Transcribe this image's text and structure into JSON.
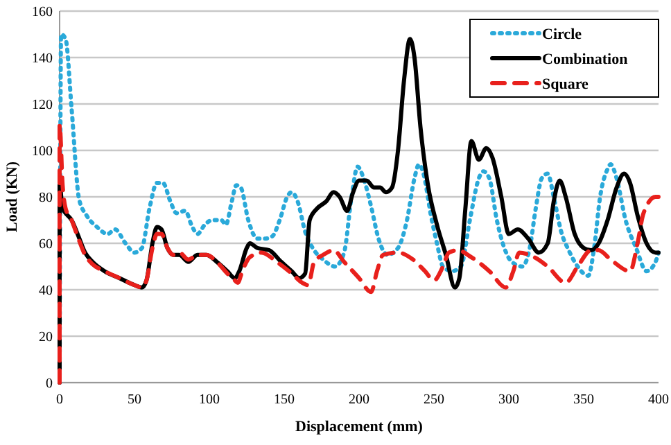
{
  "chart_data": {
    "type": "line",
    "xlabel": "Displacement (mm)",
    "ylabel": "Load (KN)",
    "xlim": [
      0,
      400
    ],
    "xticks": [
      0,
      50,
      100,
      150,
      200,
      250,
      300,
      350,
      400
    ],
    "ylim": [
      0,
      160
    ],
    "yticks": [
      0,
      20,
      40,
      60,
      80,
      100,
      120,
      140,
      160
    ],
    "grid": "y",
    "legend": "top right",
    "series": [
      {
        "name": "Circle",
        "color": "#2aa9d9",
        "line_style": "dotted",
        "x": [
          0,
          1,
          4,
          8,
          13,
          18,
          25,
          32,
          37,
          44,
          50,
          55,
          60,
          65,
          69,
          74,
          78,
          84,
          88,
          92,
          97,
          102,
          108,
          111,
          115,
          118,
          121,
          126,
          132,
          137,
          142,
          147,
          152,
          155,
          159,
          164,
          170,
          176,
          184,
          190,
          195,
          199,
          203,
          208,
          213,
          219,
          226,
          232,
          237,
          240,
          243,
          248,
          252,
          256,
          262,
          268,
          274,
          280,
          283,
          287,
          292,
          297,
          302,
          309,
          314,
          318,
          322,
          326,
          330,
          335,
          340,
          346,
          353,
          357,
          361,
          366,
          368,
          372,
          378,
          385,
          392,
          398,
          400
        ],
        "values": [
          0,
          150,
          148,
          118,
          79,
          72,
          67,
          64,
          66,
          60,
          56,
          58,
          75,
          86,
          86,
          78,
          73,
          74,
          68,
          64,
          68,
          70,
          70,
          68,
          78,
          85,
          84,
          70,
          62,
          62,
          63,
          70,
          80,
          82,
          78,
          65,
          57,
          53,
          50,
          56,
          80,
          93,
          88,
          76,
          62,
          55,
          58,
          70,
          88,
          94,
          90,
          72,
          60,
          50,
          48,
          50,
          70,
          88,
          91,
          88,
          70,
          58,
          52,
          50,
          58,
          75,
          88,
          90,
          80,
          65,
          57,
          50,
          46,
          58,
          80,
          92,
          94,
          88,
          70,
          58,
          48,
          52,
          56
        ]
      },
      {
        "name": "Combination",
        "color": "#000000",
        "line_style": "solid",
        "x": [
          0,
          0,
          2,
          4,
          8,
          12,
          17,
          22,
          30,
          40,
          50,
          55,
          58,
          62,
          65,
          68,
          72,
          76,
          80,
          86,
          92,
          98,
          105,
          112,
          117,
          120,
          125,
          127,
          132,
          140,
          148,
          155,
          160,
          164,
          167,
          172,
          178,
          183,
          187,
          192,
          196,
          200,
          205,
          210,
          214,
          218,
          222,
          226,
          230,
          234,
          237,
          241,
          246,
          252,
          258,
          264,
          267,
          271,
          275,
          280,
          285,
          289,
          295,
          300,
          306,
          313,
          320,
          326,
          330,
          334,
          338,
          344,
          350,
          355,
          360,
          366,
          372,
          377,
          381,
          386,
          392,
          398,
          400
        ],
        "values": [
          0,
          85,
          75,
          73,
          70,
          64,
          56,
          52,
          48,
          45,
          42,
          41,
          44,
          60,
          67,
          66,
          58,
          55,
          55,
          52,
          55,
          55,
          52,
          48,
          45,
          48,
          58,
          60,
          58,
          57,
          52,
          48,
          45,
          47,
          70,
          75,
          78,
          82,
          80,
          74,
          82,
          87,
          87,
          84,
          84,
          82,
          84,
          100,
          130,
          148,
          140,
          110,
          85,
          68,
          55,
          41,
          45,
          75,
          104,
          96,
          101,
          97,
          80,
          64,
          66,
          62,
          56,
          60,
          78,
          87,
          80,
          64,
          58,
          57,
          60,
          70,
          84,
          90,
          86,
          72,
          60,
          56,
          56
        ]
      },
      {
        "name": "Square",
        "color": "#e8201c",
        "line_style": "dashed",
        "x": [
          0,
          0,
          2,
          4,
          8,
          12,
          17,
          22,
          30,
          40,
          50,
          55,
          58,
          62,
          65,
          68,
          72,
          76,
          80,
          86,
          92,
          98,
          105,
          112,
          117,
          119,
          122,
          127,
          135,
          145,
          155,
          162,
          166,
          170,
          176,
          183,
          190,
          200,
          208,
          212,
          216,
          226,
          236,
          244,
          250,
          256,
          260,
          266,
          275,
          287,
          298,
          303,
          307,
          317,
          326,
          338,
          346,
          355,
          360,
          368,
          381,
          386,
          390,
          398,
          400
        ],
        "values": [
          0,
          111,
          85,
          75,
          70,
          63,
          55,
          51,
          48,
          45,
          42,
          41,
          44,
          58,
          64,
          64,
          58,
          55,
          56,
          53,
          55,
          55,
          52,
          47,
          44,
          43,
          48,
          54,
          56,
          52,
          47,
          43,
          42,
          52,
          55,
          57,
          52,
          45,
          39,
          48,
          55,
          56,
          53,
          48,
          44,
          50,
          56,
          57,
          54,
          48,
          41,
          48,
          56,
          54,
          50,
          43,
          50,
          57,
          57,
          53,
          48,
          60,
          73,
          80,
          80
        ]
      }
    ]
  }
}
